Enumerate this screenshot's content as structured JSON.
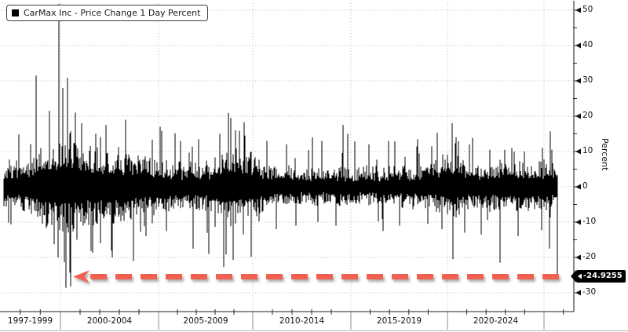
{
  "legend": {
    "series_label": "CarMax Inc - Price Change 1 Day Percent",
    "swatch_color": "#000000"
  },
  "y_axis": {
    "title": "Percent",
    "major_ticks": [
      50,
      40,
      30,
      20,
      10,
      0,
      -10,
      -20,
      -30
    ],
    "minor_ticks": [
      45,
      35,
      25,
      15,
      5,
      -5,
      -15,
      -25
    ],
    "last_value_label": "-24.9255",
    "badge_bg": "#000000",
    "badge_fg": "#ffffff"
  },
  "x_axis": {
    "section_labels": [
      "1997-1999",
      "2000-2004",
      "2005-2009",
      "2010-2014",
      "2015-2019",
      "2020-2024"
    ]
  },
  "annotation_arrow": {
    "style": "dashed",
    "direction": "left",
    "level": -24.9255,
    "color": "#f2604f",
    "meaning": "points left from the latest -24.9255% one-day drop back to the comparable 1999 drop"
  },
  "chart_data": {
    "type": "bar",
    "title": "CarMax Inc - Price Change 1 Day Percent",
    "ylabel": "Percent",
    "series_color": "#000000",
    "grid": "dotted",
    "legend_position": "top-left",
    "ylim": [
      -35,
      52
    ],
    "x_range": [
      "1997",
      "2025"
    ],
    "x_sections": [
      "1997-1999",
      "2000-2004",
      "2005-2009",
      "2010-2014",
      "2015-2019",
      "2020-2024"
    ],
    "last_value": -24.9255,
    "seed": 1337,
    "volatility_profile_format": "[position_fraction_of_time_axis, daily_pct_std_dev]",
    "volatility_profile": [
      [
        0.0,
        2.6
      ],
      [
        0.057,
        3.4
      ],
      [
        0.078,
        5.2
      ],
      [
        0.121,
        5.4
      ],
      [
        0.163,
        4.6
      ],
      [
        0.22,
        4.2
      ],
      [
        0.279,
        3.2
      ],
      [
        0.333,
        2.6
      ],
      [
        0.373,
        3.0
      ],
      [
        0.404,
        4.6
      ],
      [
        0.444,
        4.0
      ],
      [
        0.475,
        2.6
      ],
      [
        0.532,
        2.3
      ],
      [
        0.627,
        2.2
      ],
      [
        0.702,
        2.4
      ],
      [
        0.766,
        2.6
      ],
      [
        0.801,
        3.4
      ],
      [
        0.823,
        3.6
      ],
      [
        0.844,
        2.9
      ],
      [
        0.872,
        2.7
      ],
      [
        0.915,
        3.1
      ],
      [
        0.957,
        2.9
      ],
      [
        1.0,
        2.8
      ]
    ],
    "notable_moves_format": "[position_fraction_of_time_axis, one_day_percent_change]",
    "notable_moves": [
      [
        0.058,
        31.5
      ],
      [
        0.082,
        21.5
      ],
      [
        0.098,
        -20.0
      ],
      [
        0.099,
        52.0
      ],
      [
        0.106,
        28.0
      ],
      [
        0.112,
        -28.6
      ],
      [
        0.115,
        19.0
      ],
      [
        0.129,
        21.0
      ],
      [
        0.132,
        -15.0
      ],
      [
        0.14,
        18.0
      ],
      [
        0.16,
        -18.7
      ],
      [
        0.166,
        15.0
      ],
      [
        0.174,
        -16.0
      ],
      [
        0.184,
        17.5
      ],
      [
        0.196,
        -20.0
      ],
      [
        0.22,
        19.0
      ],
      [
        0.234,
        -21.0
      ],
      [
        0.257,
        -14.0
      ],
      [
        0.282,
        17.0
      ],
      [
        0.294,
        -12.5
      ],
      [
        0.319,
        13.0
      ],
      [
        0.342,
        -17.5
      ],
      [
        0.352,
        13.5
      ],
      [
        0.37,
        -19.0
      ],
      [
        0.39,
        15.0
      ],
      [
        0.41,
        19.5
      ],
      [
        0.414,
        -14.0
      ],
      [
        0.418,
        16.0
      ],
      [
        0.433,
        -13.5
      ],
      [
        0.435,
        14.5
      ],
      [
        0.447,
        -19.8
      ],
      [
        0.475,
        13.0
      ],
      [
        0.492,
        -12.0
      ],
      [
        0.511,
        12.0
      ],
      [
        0.528,
        -11.0
      ],
      [
        0.557,
        14.0
      ],
      [
        0.567,
        -10.0
      ],
      [
        0.574,
        13.0
      ],
      [
        0.6,
        -11.0
      ],
      [
        0.613,
        17.5
      ],
      [
        0.621,
        15.0
      ],
      [
        0.634,
        12.8
      ],
      [
        0.66,
        12.0
      ],
      [
        0.685,
        -12.5
      ],
      [
        0.695,
        13.0
      ],
      [
        0.715,
        -11.0
      ],
      [
        0.748,
        13.5
      ],
      [
        0.766,
        -10.5
      ],
      [
        0.773,
        11.5
      ],
      [
        0.791,
        -12.0
      ],
      [
        0.81,
        18.0
      ],
      [
        0.811,
        -20.5
      ],
      [
        0.817,
        14.0
      ],
      [
        0.833,
        -13.0
      ],
      [
        0.841,
        12.0
      ],
      [
        0.862,
        -13.5
      ],
      [
        0.878,
        10.5
      ],
      [
        0.896,
        -21.5
      ],
      [
        0.918,
        11.0
      ],
      [
        0.929,
        -14.0
      ],
      [
        0.94,
        10.0
      ],
      [
        0.973,
        11.0
      ],
      [
        0.986,
        -17.5
      ],
      [
        0.99,
        10.5
      ],
      [
        1.0,
        -24.9255
      ]
    ]
  }
}
